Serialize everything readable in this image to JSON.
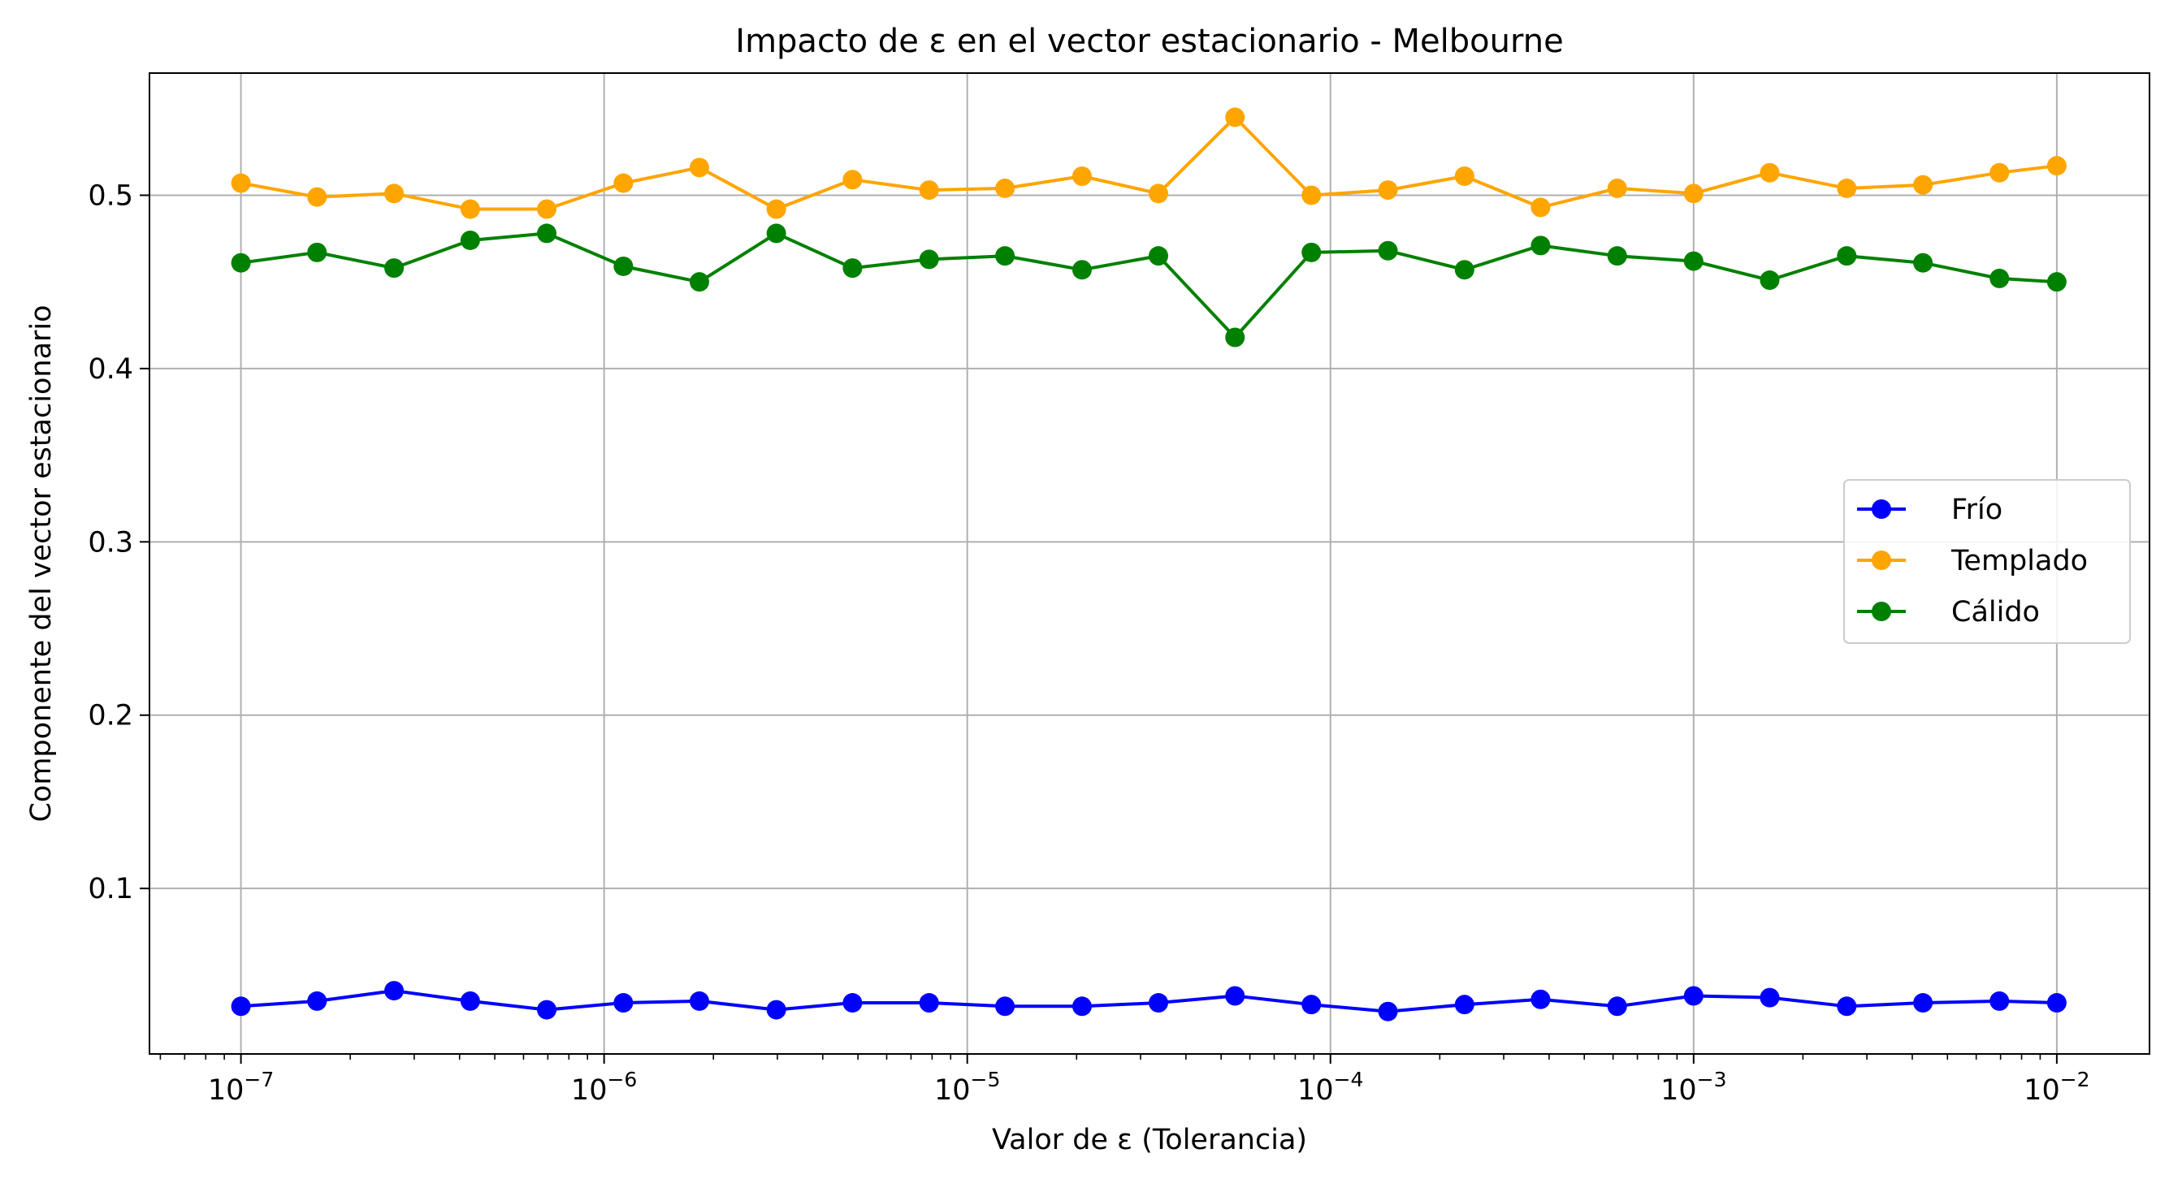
{
  "chart_data": {
    "type": "line",
    "title": "Impacto de ε en el vector estacionario - Melbourne",
    "xlabel": "Valor de ε (Tolerancia)",
    "ylabel": "Componente del vector estacionario",
    "xscale": "log",
    "xlim": [
      5.6e-08,
      0.018
    ],
    "ylim": [
      0.0045,
      0.5705
    ],
    "grid": true,
    "legend_position": "center-right",
    "x_tick_labels": [
      {
        "base": "10",
        "exp": "−7"
      },
      {
        "base": "10",
        "exp": "−6"
      },
      {
        "base": "10",
        "exp": "−5"
      },
      {
        "base": "10",
        "exp": "−4"
      },
      {
        "base": "10",
        "exp": "−3"
      },
      {
        "base": "10",
        "exp": "−2"
      }
    ],
    "y_tick_labels": [
      "0.1",
      "0.2",
      "0.3",
      "0.4",
      "0.5"
    ],
    "x": [
      1e-07,
      1.62e-07,
      2.64e-07,
      4.28e-07,
      6.95e-07,
      1.13e-06,
      1.83e-06,
      2.98e-06,
      4.83e-06,
      7.85e-06,
      1.27e-05,
      2.07e-05,
      3.36e-05,
      5.46e-05,
      8.86e-05,
      0.000144,
      0.000234,
      0.000379,
      0.000616,
      0.001,
      0.00162,
      0.00264,
      0.00428,
      0.00695,
      0.01
    ],
    "series": [
      {
        "name": "Frío",
        "color": "#0000ff",
        "values": [
          0.032,
          0.035,
          0.041,
          0.035,
          0.03,
          0.034,
          0.035,
          0.03,
          0.034,
          0.034,
          0.032,
          0.032,
          0.034,
          0.038,
          0.033,
          0.029,
          0.033,
          0.036,
          0.032,
          0.038,
          0.037,
          0.032,
          0.034,
          0.035,
          0.034
        ]
      },
      {
        "name": "Templado",
        "color": "#ffa500",
        "values": [
          0.507,
          0.499,
          0.501,
          0.492,
          0.492,
          0.507,
          0.516,
          0.492,
          0.509,
          0.503,
          0.504,
          0.511,
          0.501,
          0.545,
          0.5,
          0.503,
          0.511,
          0.493,
          0.504,
          0.501,
          0.513,
          0.504,
          0.506,
          0.513,
          0.517
        ]
      },
      {
        "name": "Cálido",
        "color": "#008000",
        "values": [
          0.461,
          0.467,
          0.458,
          0.474,
          0.478,
          0.459,
          0.45,
          0.478,
          0.458,
          0.463,
          0.465,
          0.457,
          0.465,
          0.418,
          0.467,
          0.468,
          0.457,
          0.471,
          0.465,
          0.462,
          0.451,
          0.465,
          0.461,
          0.452,
          0.45
        ]
      }
    ]
  }
}
